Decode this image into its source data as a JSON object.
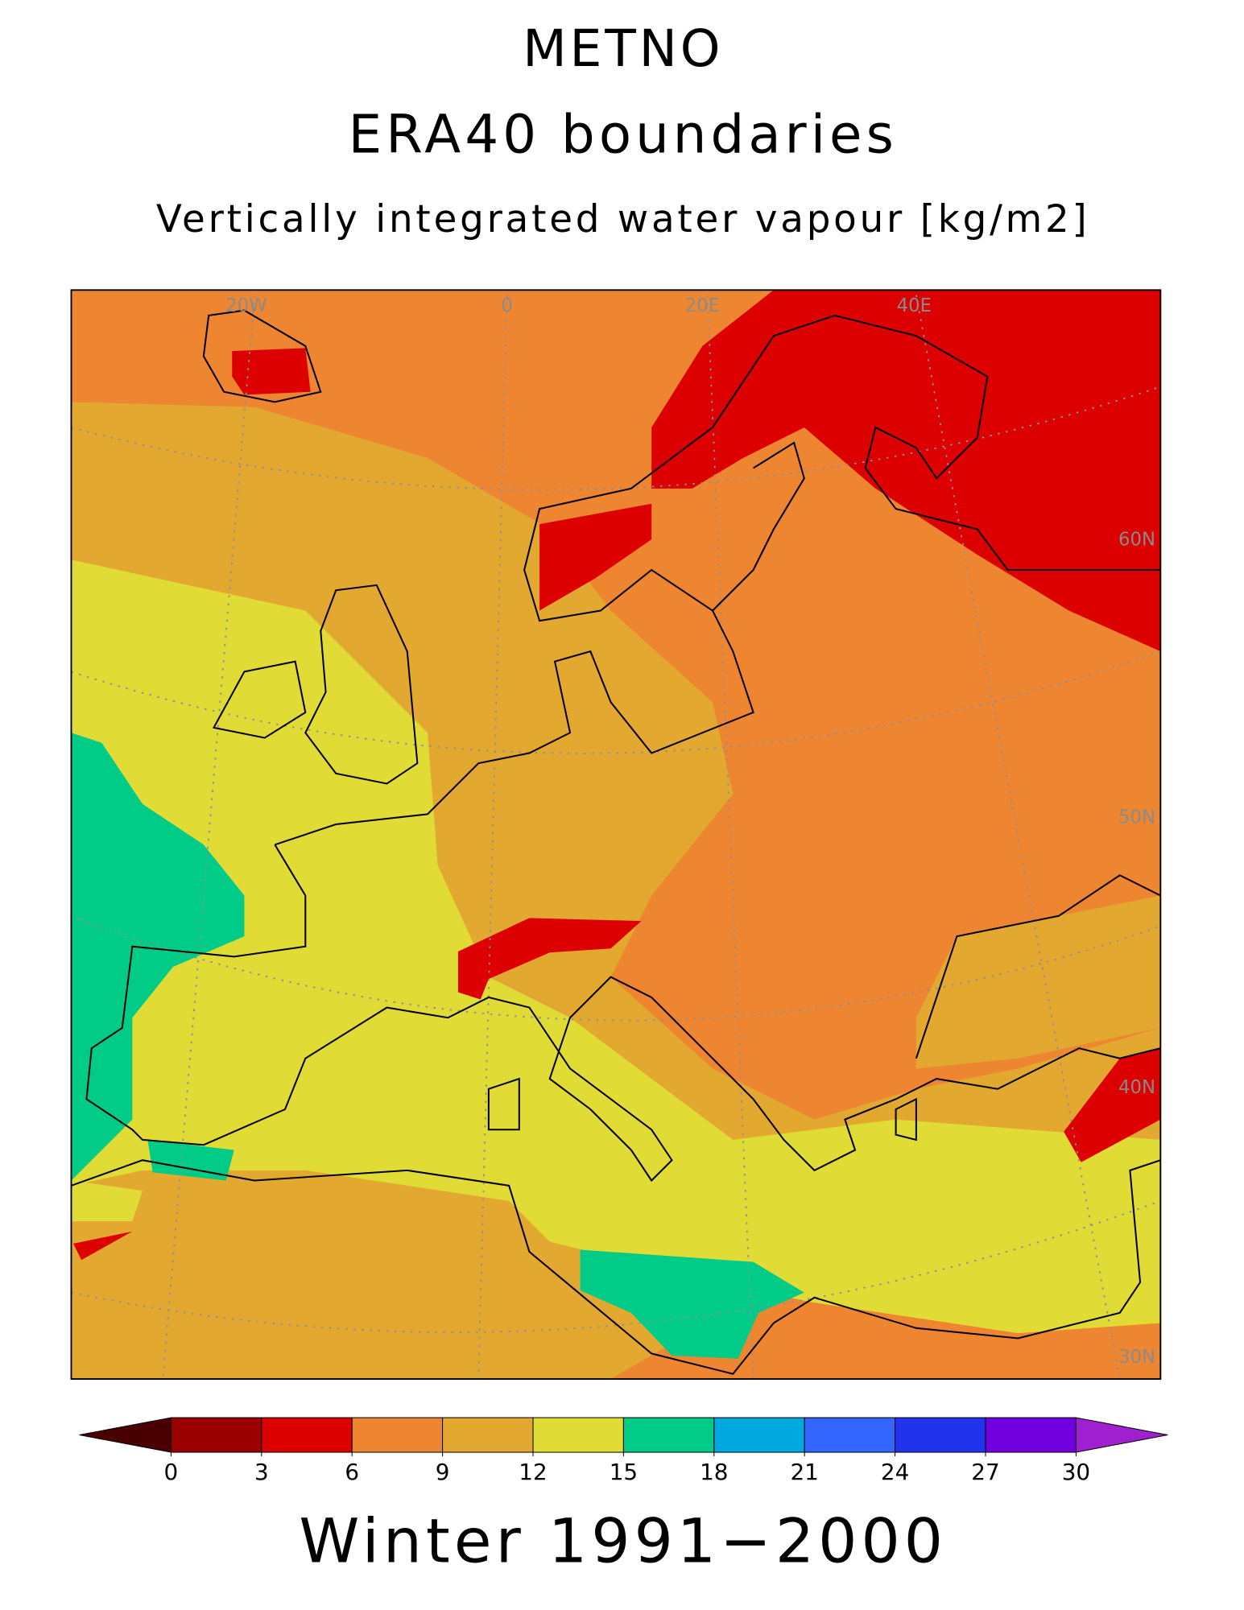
{
  "header": {
    "title": "METNO",
    "line2": "ERA40 boundaries",
    "subtitle": "Vertically integrated water vapour [kg/m2]"
  },
  "map": {
    "graticule_labels": [
      "20W",
      "0",
      "20E",
      "40E",
      "60N",
      "50N",
      "40N",
      "30N"
    ]
  },
  "colorbar": {
    "levels": [
      0,
      3,
      6,
      9,
      12,
      15,
      18,
      21,
      24,
      27,
      30
    ],
    "colors": [
      "#9b0000",
      "#dd0000",
      "#ee8530",
      "#e3a830",
      "#e1dc35",
      "#00cc88",
      "#00a8e0",
      "#3366ff",
      "#2233ee",
      "#7000dd"
    ],
    "under_color": "#4a0000",
    "over_color": "#a020d0"
  },
  "footer": "Winter 1991−2000"
}
